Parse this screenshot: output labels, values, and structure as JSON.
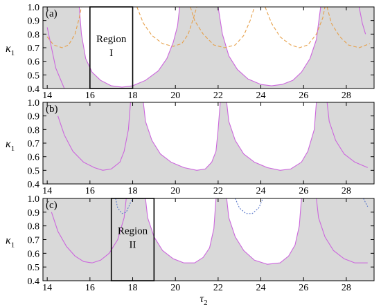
{
  "figure": {
    "xlabel": {
      "sym": "τ",
      "sub": "2"
    },
    "ylabel": {
      "sym": "κ",
      "sub": "1"
    }
  },
  "chart_data": [
    {
      "type": "area",
      "panel": "(a)",
      "xlim": [
        13.8,
        29.3
      ],
      "ylim": [
        0.4,
        1.0
      ],
      "xticks": [
        "14",
        "16",
        "18",
        "20",
        "22",
        "24",
        "26",
        "28"
      ],
      "yticks": [
        "0.4",
        "0.5",
        "0.6",
        "0.7",
        "0.8",
        "0.9",
        "1.0"
      ],
      "grid": false,
      "region": {
        "label_line1": "Region",
        "label_line2": "I",
        "x": [
          16.0,
          18.0
        ],
        "y": [
          0.4,
          1.0
        ]
      },
      "series": [
        {
          "style": "solid",
          "color": "#cc66dd",
          "points": [
            [
              14.0,
              0.85
            ],
            [
              14.4,
              0.55
            ],
            [
              14.8,
              0.4
            ]
          ]
        },
        {
          "style": "solid",
          "color": "#cc66dd",
          "points": [
            [
              15.5,
              1.0
            ],
            [
              15.6,
              0.8
            ],
            [
              15.8,
              0.62
            ],
            [
              16.1,
              0.52
            ],
            [
              16.5,
              0.46
            ],
            [
              17.0,
              0.42
            ],
            [
              17.5,
              0.41
            ],
            [
              18.0,
              0.42
            ],
            [
              18.6,
              0.46
            ],
            [
              19.2,
              0.53
            ],
            [
              19.6,
              0.62
            ],
            [
              19.9,
              0.74
            ],
            [
              20.1,
              0.86
            ],
            [
              20.2,
              1.0
            ]
          ]
        },
        {
          "style": "solid",
          "color": "#cc66dd",
          "points": [
            [
              22.0,
              1.0
            ],
            [
              22.2,
              0.8
            ],
            [
              22.5,
              0.64
            ],
            [
              22.9,
              0.54
            ],
            [
              23.4,
              0.47
            ],
            [
              24.0,
              0.43
            ],
            [
              24.5,
              0.42
            ],
            [
              25.0,
              0.43
            ],
            [
              25.5,
              0.46
            ],
            [
              25.9,
              0.52
            ],
            [
              26.3,
              0.62
            ],
            [
              26.6,
              0.76
            ],
            [
              26.8,
              1.0
            ]
          ]
        },
        {
          "style": "solid",
          "color": "#cc66dd",
          "points": [
            [
              28.6,
              1.0
            ],
            [
              28.75,
              0.88
            ],
            [
              28.9,
              0.8
            ]
          ]
        },
        {
          "style": "dashed",
          "color": "#e6a04a",
          "points": [
            [
              14.0,
              0.78
            ],
            [
              14.3,
              0.72
            ],
            [
              14.7,
              0.7
            ],
            [
              15.0,
              0.72
            ],
            [
              15.3,
              0.8
            ],
            [
              15.5,
              0.92
            ],
            [
              15.6,
              1.0
            ]
          ]
        },
        {
          "style": "dashed",
          "color": "#e6a04a",
          "points": [
            [
              18.2,
              1.0
            ],
            [
              18.5,
              0.88
            ],
            [
              18.9,
              0.79
            ],
            [
              19.4,
              0.73
            ],
            [
              19.9,
              0.71
            ],
            [
              20.3,
              0.73
            ],
            [
              20.6,
              0.8
            ],
            [
              20.85,
              0.92
            ],
            [
              21.0,
              1.0
            ]
          ]
        },
        {
          "style": "dashed",
          "color": "#e6a04a",
          "points": [
            [
              20.7,
              1.0
            ],
            [
              20.9,
              0.9
            ],
            [
              21.3,
              0.8
            ],
            [
              21.8,
              0.72
            ],
            [
              22.3,
              0.7
            ],
            [
              22.8,
              0.72
            ],
            [
              23.2,
              0.79
            ],
            [
              23.5,
              0.9
            ],
            [
              23.7,
              1.0
            ]
          ]
        },
        {
          "style": "dashed",
          "color": "#e6a04a",
          "points": [
            [
              24.2,
              1.0
            ],
            [
              24.5,
              0.88
            ],
            [
              24.9,
              0.78
            ],
            [
              25.4,
              0.72
            ],
            [
              25.8,
              0.7
            ],
            [
              26.2,
              0.72
            ],
            [
              26.6,
              0.8
            ],
            [
              26.9,
              0.92
            ],
            [
              27.0,
              1.0
            ]
          ]
        },
        {
          "style": "dashed",
          "color": "#e6a04a",
          "points": [
            [
              27.1,
              1.0
            ],
            [
              27.3,
              0.88
            ],
            [
              27.7,
              0.78
            ],
            [
              28.1,
              0.72
            ],
            [
              28.6,
              0.7
            ],
            [
              29.1,
              0.73
            ]
          ]
        }
      ]
    },
    {
      "type": "area",
      "panel": "(b)",
      "xlim": [
        13.8,
        29.3
      ],
      "ylim": [
        0.4,
        1.0
      ],
      "xticks": [
        "14",
        "16",
        "18",
        "20",
        "22",
        "24",
        "26",
        "28"
      ],
      "yticks": [
        "0.4",
        "0.5",
        "0.6",
        "0.7",
        "0.8",
        "0.9",
        "1.0"
      ],
      "grid": false,
      "series": [
        {
          "style": "solid",
          "color": "#cc66dd",
          "points": [
            [
              14.5,
              0.9
            ],
            [
              14.8,
              0.76
            ],
            [
              15.2,
              0.64
            ],
            [
              15.7,
              0.56
            ],
            [
              16.2,
              0.52
            ],
            [
              16.6,
              0.5
            ],
            [
              17.0,
              0.51
            ],
            [
              17.4,
              0.56
            ],
            [
              17.6,
              0.64
            ],
            [
              17.8,
              0.8
            ],
            [
              17.9,
              1.0
            ]
          ]
        },
        {
          "style": "solid",
          "color": "#cc66dd",
          "points": [
            [
              18.5,
              1.0
            ],
            [
              18.6,
              0.86
            ],
            [
              18.9,
              0.72
            ],
            [
              19.3,
              0.62
            ],
            [
              19.8,
              0.56
            ],
            [
              20.4,
              0.52
            ],
            [
              21.0,
              0.5
            ],
            [
              21.4,
              0.51
            ],
            [
              21.7,
              0.56
            ],
            [
              21.9,
              0.64
            ],
            [
              22.0,
              0.8
            ],
            [
              22.1,
              1.0
            ]
          ]
        },
        {
          "style": "solid",
          "color": "#cc66dd",
          "points": [
            [
              22.4,
              1.0
            ],
            [
              22.5,
              0.86
            ],
            [
              22.8,
              0.72
            ],
            [
              23.2,
              0.62
            ],
            [
              23.7,
              0.56
            ],
            [
              24.3,
              0.52
            ],
            [
              24.9,
              0.5
            ],
            [
              25.4,
              0.51
            ],
            [
              25.9,
              0.56
            ],
            [
              26.2,
              0.64
            ],
            [
              26.5,
              0.8
            ],
            [
              26.6,
              1.0
            ]
          ]
        },
        {
          "style": "solid",
          "color": "#cc66dd",
          "points": [
            [
              27.1,
              1.0
            ],
            [
              27.2,
              0.86
            ],
            [
              27.5,
              0.72
            ],
            [
              27.9,
              0.62
            ],
            [
              28.4,
              0.56
            ],
            [
              29.0,
              0.52
            ]
          ]
        }
      ]
    },
    {
      "type": "area",
      "panel": "(c)",
      "xlim": [
        13.8,
        29.3
      ],
      "ylim": [
        0.4,
        1.0
      ],
      "xticks": [
        "14",
        "16",
        "18",
        "20",
        "22",
        "24",
        "26",
        "28"
      ],
      "yticks": [
        "0.4",
        "0.5",
        "0.6",
        "0.7",
        "0.8",
        "0.9",
        "1.0"
      ],
      "grid": false,
      "region": {
        "label_line1": "Region",
        "label_line2": "II",
        "x": [
          17.0,
          19.0
        ],
        "y": [
          0.4,
          1.0
        ]
      },
      "series": [
        {
          "style": "solid",
          "color": "#cc66dd",
          "points": [
            [
              14.2,
              0.9
            ],
            [
              14.5,
              0.76
            ],
            [
              14.9,
              0.65
            ],
            [
              15.3,
              0.58
            ],
            [
              15.7,
              0.54
            ],
            [
              16.1,
              0.53
            ],
            [
              16.5,
              0.55
            ],
            [
              16.9,
              0.6
            ],
            [
              17.3,
              0.7
            ],
            [
              17.6,
              0.86
            ],
            [
              17.7,
              1.0
            ]
          ]
        },
        {
          "style": "solid",
          "color": "#cc66dd",
          "points": [
            [
              18.6,
              1.0
            ],
            [
              18.7,
              0.86
            ],
            [
              19.0,
              0.72
            ],
            [
              19.4,
              0.62
            ],
            [
              19.9,
              0.56
            ],
            [
              20.4,
              0.53
            ],
            [
              20.9,
              0.53
            ],
            [
              21.3,
              0.57
            ],
            [
              21.6,
              0.64
            ],
            [
              21.8,
              0.78
            ],
            [
              21.9,
              1.0
            ]
          ]
        },
        {
          "style": "solid",
          "color": "#cc66dd",
          "points": [
            [
              22.4,
              1.0
            ],
            [
              22.5,
              0.86
            ],
            [
              22.8,
              0.72
            ],
            [
              23.2,
              0.62
            ],
            [
              23.7,
              0.55
            ],
            [
              24.3,
              0.52
            ],
            [
              24.9,
              0.53
            ],
            [
              25.3,
              0.58
            ],
            [
              25.6,
              0.66
            ],
            [
              25.8,
              0.8
            ],
            [
              25.9,
              1.0
            ]
          ]
        },
        {
          "style": "solid",
          "color": "#cc66dd",
          "points": [
            [
              26.6,
              1.0
            ],
            [
              26.7,
              0.86
            ],
            [
              27.0,
              0.72
            ],
            [
              27.4,
              0.62
            ],
            [
              27.9,
              0.56
            ],
            [
              28.4,
              0.53
            ],
            [
              29.0,
              0.53
            ]
          ]
        },
        {
          "style": "dotted",
          "color": "#5a78cc",
          "points": [
            [
              17.2,
              1.0
            ],
            [
              17.3,
              0.93
            ],
            [
              17.5,
              0.89
            ],
            [
              17.7,
              0.9
            ],
            [
              17.9,
              0.97
            ],
            [
              18.0,
              1.0
            ]
          ]
        },
        {
          "style": "dotted",
          "color": "#5a78cc",
          "points": [
            [
              22.8,
              1.0
            ],
            [
              23.0,
              0.93
            ],
            [
              23.3,
              0.89
            ],
            [
              23.6,
              0.89
            ],
            [
              23.9,
              0.93
            ],
            [
              24.1,
              1.0
            ]
          ]
        },
        {
          "style": "dotted",
          "color": "#5a78cc",
          "points": [
            [
              28.8,
              1.0
            ],
            [
              28.9,
              0.97
            ],
            [
              29.0,
              0.94
            ]
          ]
        }
      ]
    }
  ]
}
